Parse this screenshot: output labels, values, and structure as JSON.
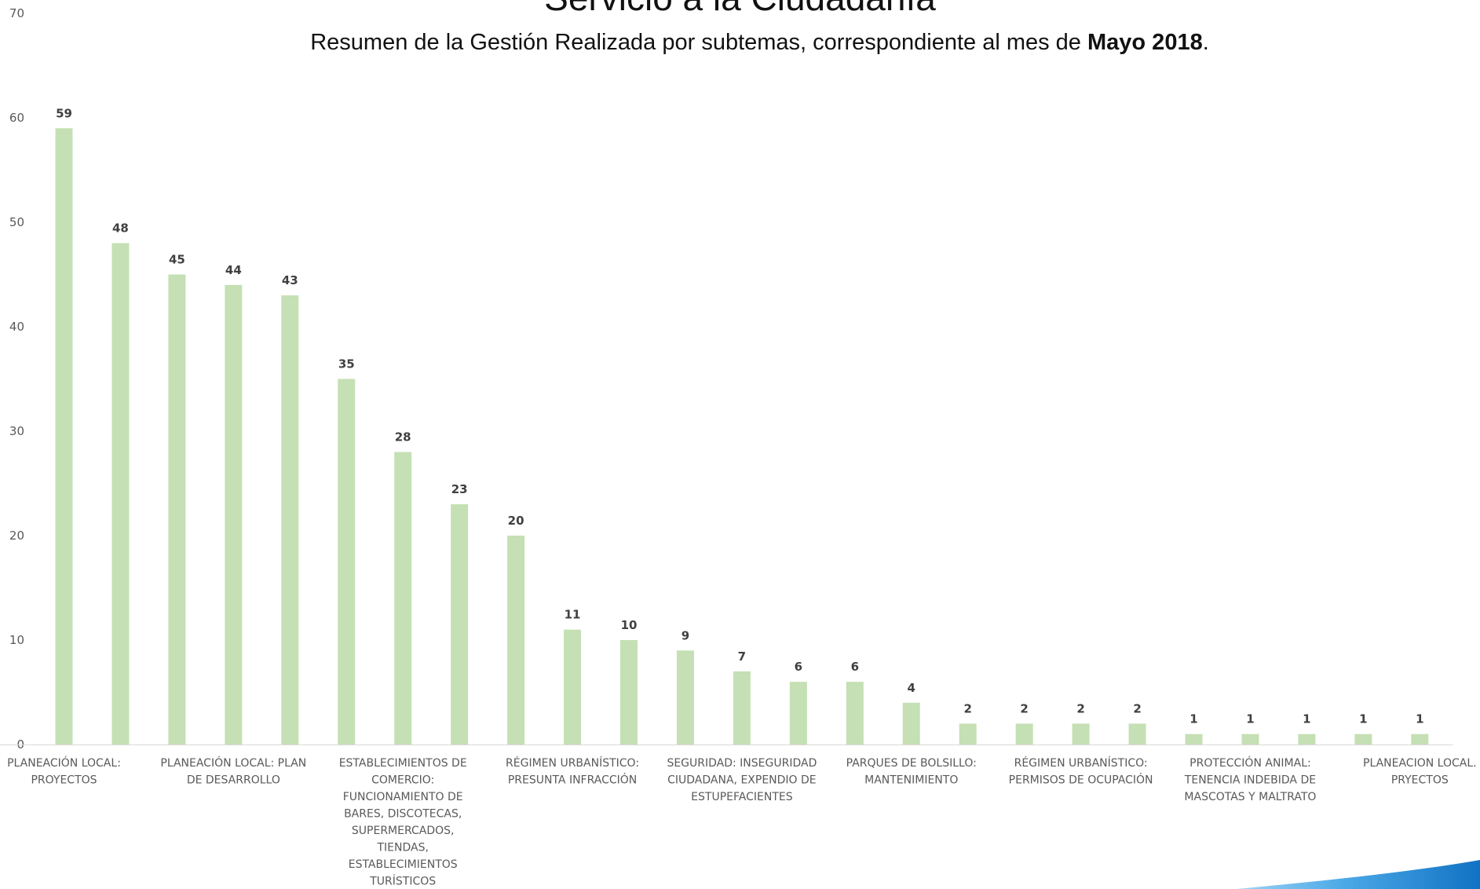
{
  "header": {
    "title": "Servicio a la Ciudadanía",
    "subtitle_prefix": "Resumen de  la Gestión Realizada por subtemas, correspondiente al mes de ",
    "subtitle_bold": "Mayo 2018",
    "subtitle_suffix": "."
  },
  "colors": {
    "bar": "#c5e0b4",
    "axis": "#d9d9d9",
    "text": "#595959",
    "accent_swoosh": "#1e88d0"
  },
  "chart_data": {
    "type": "bar",
    "title": "Servicio a la Ciudadanía",
    "subtitle": "Resumen de  la Gestión Realizada por subtemas, correspondiente al mes de Mayo 2018.",
    "ylim": [
      0,
      70
    ],
    "yticks": [
      0,
      10,
      20,
      30,
      40,
      50,
      60,
      70
    ],
    "grid": false,
    "legend": "none",
    "values": [
      59,
      48,
      45,
      44,
      43,
      35,
      28,
      23,
      20,
      11,
      10,
      9,
      7,
      6,
      6,
      4,
      2,
      2,
      2,
      2,
      1,
      1,
      1,
      1,
      1
    ],
    "category_labels": [
      {
        "bar_index": 0,
        "lines": [
          "PLANEACIÓN LOCAL:",
          "PROYECTOS"
        ]
      },
      {
        "bar_index": 3,
        "lines": [
          "PLANEACIÓN LOCAL: PLAN",
          "DE DESARROLLO"
        ]
      },
      {
        "bar_index": 6,
        "lines": [
          "ESTABLECIMIENTOS DE",
          "COMERCIO:",
          "FUNCIONAMIENTO DE",
          "BARES, DISCOTECAS,",
          "SUPERMERCADOS,",
          "TIENDAS,",
          "ESTABLECIMIENTOS",
          "TURÍSTICOS"
        ]
      },
      {
        "bar_index": 9,
        "lines": [
          "RÉGIMEN URBANÍSTICO:",
          "PRESUNTA INFRACCIÓN"
        ]
      },
      {
        "bar_index": 12,
        "lines": [
          "SEGURIDAD: INSEGURIDAD",
          "CIUDADANA, EXPENDIO DE",
          "ESTUPEFACIENTES"
        ]
      },
      {
        "bar_index": 15,
        "lines": [
          "PARQUES DE BOLSILLO:",
          "MANTENIMIENTO"
        ]
      },
      {
        "bar_index": 18,
        "lines": [
          "RÉGIMEN URBANÍSTICO:",
          "PERMISOS DE OCUPACIÓN"
        ]
      },
      {
        "bar_index": 21,
        "lines": [
          "PROTECCIÓN ANIMAL:",
          "TENENCIA INDEBIDA DE",
          "MASCOTAS Y MALTRATO"
        ]
      },
      {
        "bar_index": 24,
        "lines": [
          "PLANEACION LOCAL.",
          "PRYECTOS"
        ]
      }
    ]
  }
}
